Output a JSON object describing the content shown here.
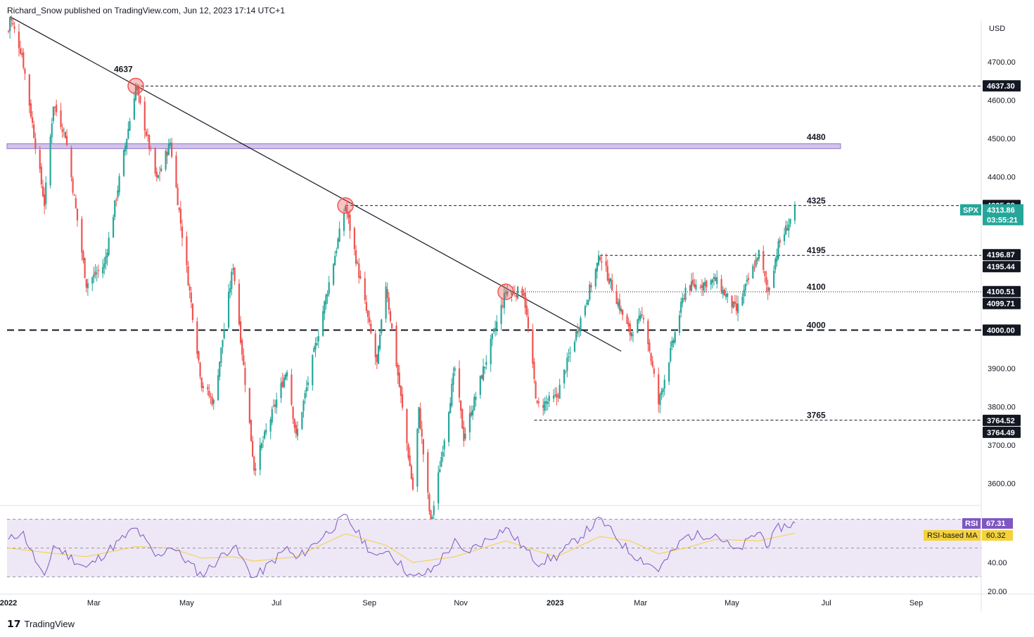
{
  "header": {
    "publisher": "Richard_Snow published on TradingView.com, Jun 12, 2023 17:14 UTC+1"
  },
  "footer": {
    "brand": "TradingView"
  },
  "colors": {
    "up": "#26a69a",
    "down": "#ef5350",
    "rsi_line": "#7e57c2",
    "rsi_ma": "#f5d23a",
    "rsi_band": "#ede7f6",
    "resistance_band": "#d1c4e9"
  },
  "chart_data": [
    {
      "type": "candlestick",
      "symbol": "SPX",
      "currency": "USD",
      "price_axis": {
        "ticks": [
          3600,
          3700,
          3800,
          3900,
          4000,
          4100,
          4200,
          4300,
          4400,
          4500,
          4600,
          4700
        ],
        "tick_labels": [
          "3600.00",
          "3700.00",
          "3800.00",
          "3900.00",
          "4000.00",
          "4100.00",
          "4200.00",
          "4300.00",
          "4400.00",
          "4500.00",
          "4600.00",
          "4700.00"
        ],
        "unit_label": "USD"
      },
      "time_axis": {
        "labels": [
          "2022",
          "Mar",
          "May",
          "Jul",
          "Sep",
          "Nov",
          "2023",
          "Mar",
          "May",
          "Jul",
          "Sep"
        ]
      },
      "last_price": {
        "symbol": "SPX",
        "value": "4313.86",
        "countdown": "03:55:21"
      },
      "price_tags": [
        {
          "label": "4637.30",
          "value": 4637.3,
          "style": "dark"
        },
        {
          "label": "4325.28",
          "value": 4325.28,
          "style": "dark"
        },
        {
          "label": "4196.87",
          "value": 4196.87,
          "style": "dark"
        },
        {
          "label": "4195.44",
          "value": 4195.44,
          "style": "dark"
        },
        {
          "label": "4100.51",
          "value": 4100.51,
          "style": "dark"
        },
        {
          "label": "4099.71",
          "value": 4099.71,
          "style": "dark"
        },
        {
          "label": "4000.00",
          "value": 4000.0,
          "style": "dark"
        },
        {
          "label": "3764.52",
          "value": 3764.52,
          "style": "dark"
        },
        {
          "label": "3764.49",
          "value": 3764.49,
          "style": "dark"
        }
      ],
      "levels": [
        {
          "label": "4637",
          "value": 4637,
          "style": "dashed"
        },
        {
          "label": "4480",
          "value": 4480,
          "style": "band"
        },
        {
          "label": "4325",
          "value": 4325,
          "style": "dashed"
        },
        {
          "label": "4195",
          "value": 4195,
          "style": "dashed"
        },
        {
          "label": "4100",
          "value": 4100,
          "style": "dotted"
        },
        {
          "label": "4000",
          "value": 4000,
          "style": "heavy-dashed"
        },
        {
          "label": "3765",
          "value": 3765,
          "style": "dashed"
        }
      ],
      "trendline": {
        "from": [
          "2022-01-04",
          4818
        ],
        "to": [
          "2023-02-16",
          3945
        ]
      },
      "touch_points": [
        {
          "date": "2022-03-29",
          "value": 4637
        },
        {
          "date": "2022-08-16",
          "value": 4325
        },
        {
          "date": "2022-12-01",
          "value": 4100
        }
      ],
      "swing_path": [
        [
          "2022-01-03",
          4780
        ],
        [
          "2022-01-04",
          4818
        ],
        [
          "2022-01-12",
          4720
        ],
        [
          "2022-01-27",
          4330
        ],
        [
          "2022-02-02",
          4590
        ],
        [
          "2022-02-10",
          4510
        ],
        [
          "2022-02-24",
          4120
        ],
        [
          "2022-03-08",
          4170
        ],
        [
          "2022-03-29",
          4637
        ],
        [
          "2022-04-12",
          4390
        ],
        [
          "2022-04-21",
          4490
        ],
        [
          "2022-05-12",
          3860
        ],
        [
          "2022-05-20",
          3810
        ],
        [
          "2022-06-02",
          4170
        ],
        [
          "2022-06-16",
          3640
        ],
        [
          "2022-07-08",
          3900
        ],
        [
          "2022-07-14",
          3720
        ],
        [
          "2022-08-16",
          4325
        ],
        [
          "2022-09-06",
          3910
        ],
        [
          "2022-09-12",
          4120
        ],
        [
          "2022-09-30",
          3585
        ],
        [
          "2022-10-04",
          3790
        ],
        [
          "2022-10-12",
          3491
        ],
        [
          "2022-10-28",
          3900
        ],
        [
          "2022-11-03",
          3720
        ],
        [
          "2022-12-01",
          4100
        ],
        [
          "2022-12-13",
          4100
        ],
        [
          "2022-12-22",
          3800
        ],
        [
          "2023-01-04",
          3825
        ],
        [
          "2023-02-02",
          4195
        ],
        [
          "2023-02-16",
          4050
        ],
        [
          "2023-02-22",
          3990
        ],
        [
          "2023-03-03",
          4040
        ],
        [
          "2023-03-13",
          3808
        ],
        [
          "2023-03-31",
          4110
        ],
        [
          "2023-04-20",
          4130
        ],
        [
          "2023-05-04",
          4050
        ],
        [
          "2023-05-19",
          4200
        ],
        [
          "2023-05-25",
          4100
        ],
        [
          "2023-06-01",
          4220
        ],
        [
          "2023-06-12",
          4313.86
        ]
      ],
      "price_range_low": 3491.58,
      "price_range_high": 4818.62
    },
    {
      "type": "line",
      "indicator": "RSI",
      "axis_ticks": [
        20,
        40
      ],
      "tick_labels": [
        "20.00",
        "40.00"
      ],
      "guide_lines": [
        30,
        50,
        70
      ],
      "series": [
        {
          "name": "RSI",
          "last_value": "67.31"
        },
        {
          "name": "RSI-based MA",
          "last_value": "60.32"
        }
      ],
      "rsi_path": [
        [
          "2022-01-03",
          55
        ],
        [
          "2022-01-12",
          62
        ],
        [
          "2022-01-27",
          28
        ],
        [
          "2022-02-02",
          52
        ],
        [
          "2022-02-24",
          36
        ],
        [
          "2022-03-29",
          64
        ],
        [
          "2022-04-12",
          43
        ],
        [
          "2022-04-21",
          52
        ],
        [
          "2022-05-12",
          31
        ],
        [
          "2022-06-02",
          52
        ],
        [
          "2022-06-16",
          29
        ],
        [
          "2022-07-08",
          50
        ],
        [
          "2022-07-14",
          42
        ],
        [
          "2022-08-16",
          72
        ],
        [
          "2022-09-06",
          42
        ],
        [
          "2022-09-12",
          50
        ],
        [
          "2022-09-30",
          29
        ],
        [
          "2022-10-12",
          34
        ],
        [
          "2022-10-28",
          54
        ],
        [
          "2022-11-03",
          46
        ],
        [
          "2022-12-01",
          64
        ],
        [
          "2022-12-22",
          40
        ],
        [
          "2023-01-04",
          44
        ],
        [
          "2023-02-02",
          70
        ],
        [
          "2023-02-22",
          47
        ],
        [
          "2023-03-13",
          35
        ],
        [
          "2023-03-31",
          58
        ],
        [
          "2023-04-20",
          60
        ],
        [
          "2023-05-04",
          47
        ],
        [
          "2023-05-19",
          62
        ],
        [
          "2023-05-25",
          52
        ],
        [
          "2023-06-01",
          64
        ],
        [
          "2023-06-12",
          67.31
        ]
      ],
      "ma_path": [
        [
          "2022-01-03",
          50
        ],
        [
          "2022-01-27",
          47
        ],
        [
          "2022-02-24",
          44
        ],
        [
          "2022-03-29",
          51
        ],
        [
          "2022-04-21",
          50
        ],
        [
          "2022-05-12",
          43
        ],
        [
          "2022-06-02",
          44
        ],
        [
          "2022-06-16",
          41
        ],
        [
          "2022-07-14",
          44
        ],
        [
          "2022-08-16",
          60
        ],
        [
          "2022-09-12",
          52
        ],
        [
          "2022-09-30",
          40
        ],
        [
          "2022-10-28",
          44
        ],
        [
          "2022-12-01",
          55
        ],
        [
          "2022-12-22",
          48
        ],
        [
          "2023-01-04",
          44
        ],
        [
          "2023-02-02",
          58
        ],
        [
          "2023-02-22",
          55
        ],
        [
          "2023-03-13",
          46
        ],
        [
          "2023-03-31",
          50
        ],
        [
          "2023-04-20",
          56
        ],
        [
          "2023-05-19",
          55
        ],
        [
          "2023-06-12",
          60.32
        ]
      ]
    }
  ]
}
